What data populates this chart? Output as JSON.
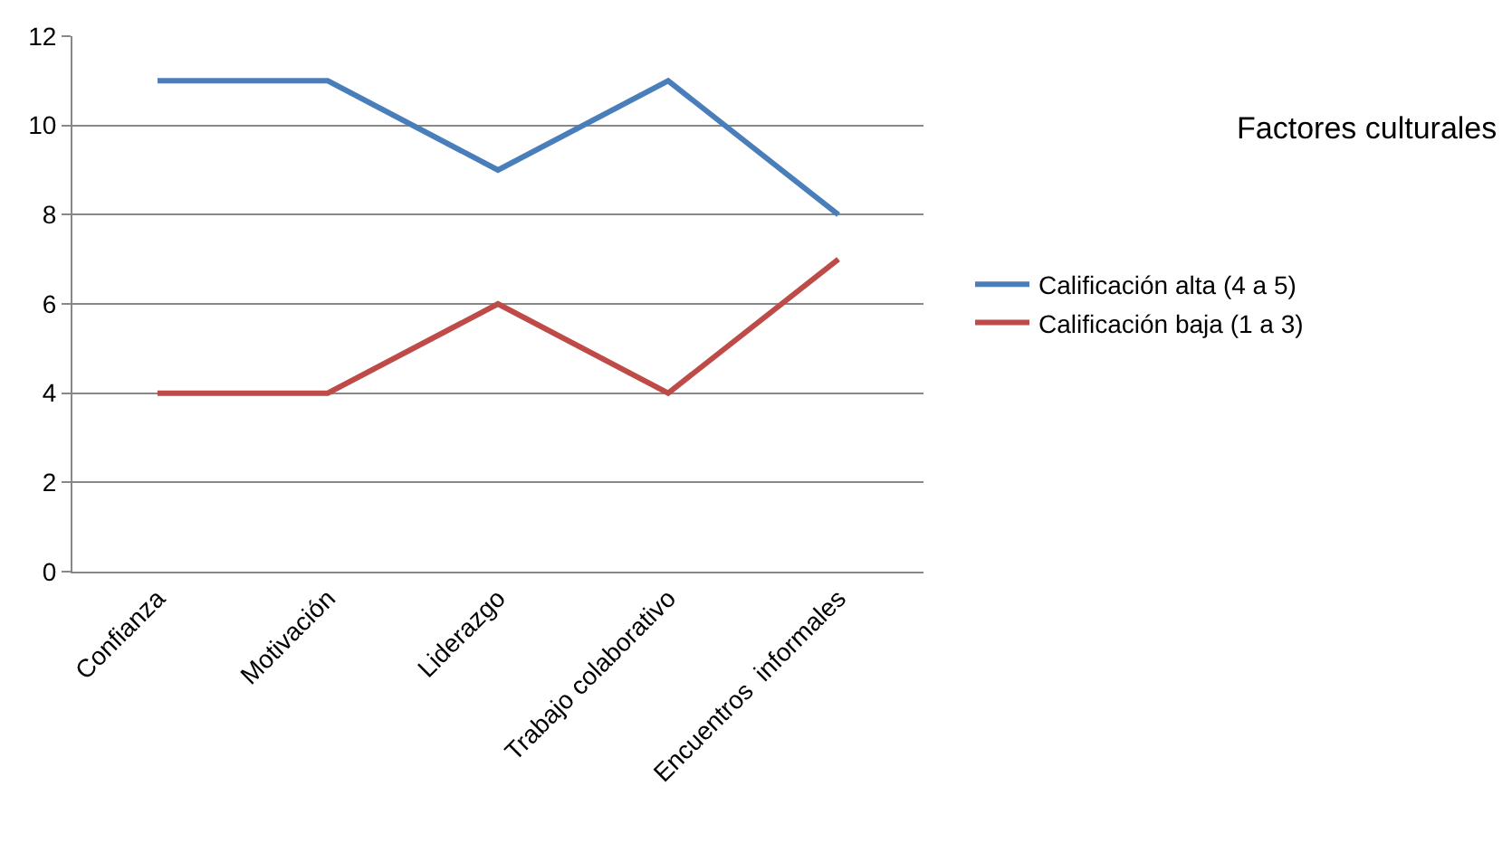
{
  "chart_data": {
    "type": "line",
    "title": "Factores culturales",
    "categories": [
      "Confianza",
      "Motivación",
      "Liderazgo",
      "Trabajo colaborativo",
      "Encuentros  informales"
    ],
    "series": [
      {
        "name": "Calificación alta (4 a 5)",
        "color": "#4a7ebb",
        "values": [
          11,
          11,
          9,
          11,
          8
        ]
      },
      {
        "name": "Calificación baja (1 a 3)",
        "color": "#be4b48",
        "values": [
          4,
          4,
          6,
          4,
          7
        ]
      }
    ],
    "ylim": [
      0,
      12
    ],
    "yticks": [
      0,
      2,
      4,
      6,
      8,
      10,
      12
    ],
    "grid": "y",
    "legend": "right",
    "line_style": "solid"
  }
}
